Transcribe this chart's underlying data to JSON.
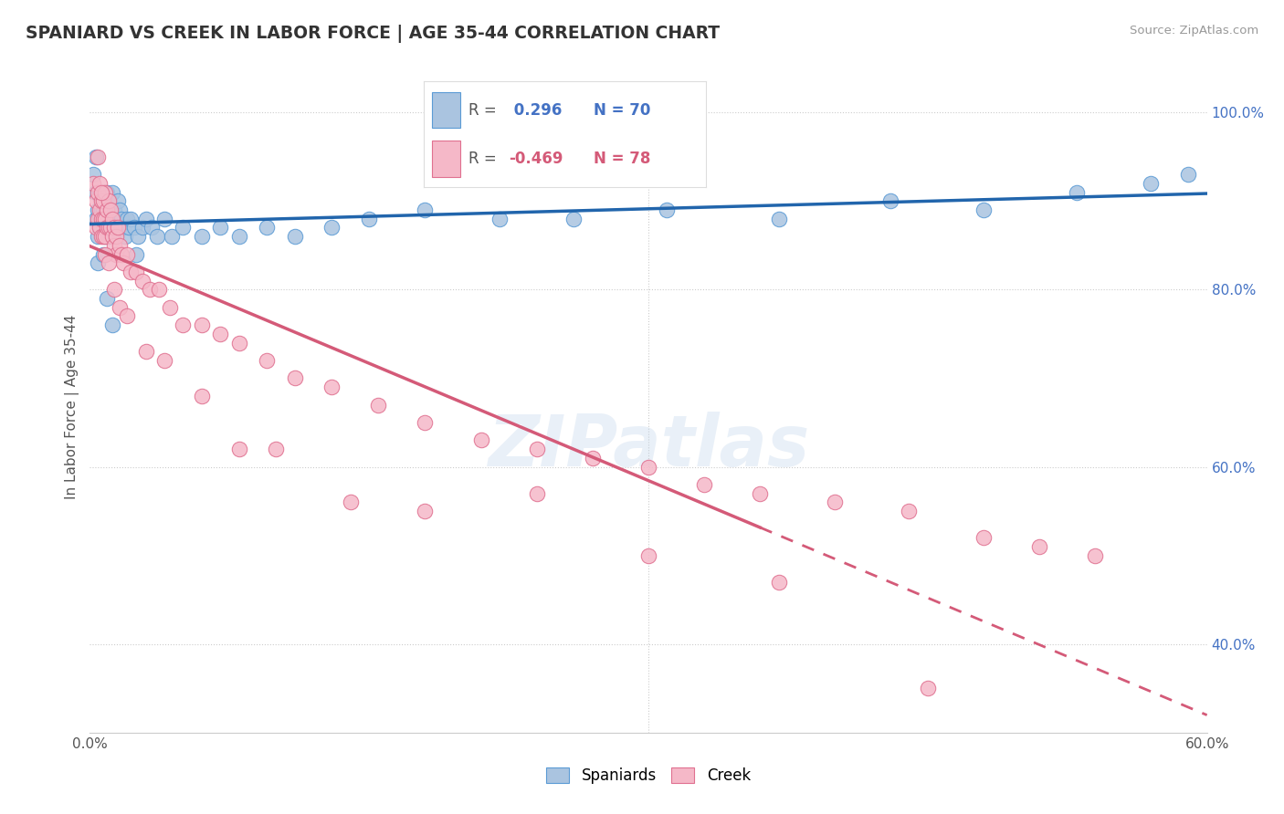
{
  "title": "SPANIARD VS CREEK IN LABOR FORCE | AGE 35-44 CORRELATION CHART",
  "source_text": "Source: ZipAtlas.com",
  "ylabel": "In Labor Force | Age 35-44",
  "xlim": [
    0.0,
    0.6
  ],
  "ylim": [
    0.3,
    1.035
  ],
  "xticks": [
    0.0,
    0.1,
    0.2,
    0.3,
    0.4,
    0.5,
    0.6
  ],
  "xticklabels": [
    "0.0%",
    "",
    "",
    "",
    "",
    "",
    "60.0%"
  ],
  "yticks": [
    0.4,
    0.6,
    0.8,
    1.0
  ],
  "yticklabels": [
    "40.0%",
    "60.0%",
    "80.0%",
    "100.0%"
  ],
  "r_spaniard": 0.296,
  "n_spaniard": 70,
  "r_creek": -0.469,
  "n_creek": 78,
  "blue_color": "#aac4e0",
  "blue_edge_color": "#5b9bd5",
  "blue_line_color": "#2165ac",
  "pink_color": "#f5b8c8",
  "pink_edge_color": "#e07090",
  "pink_line_color": "#d45a78",
  "legend_label_blue": "Spaniards",
  "legend_label_pink": "Creek",
  "watermark": "ZIPatlas",
  "spaniard_x": [
    0.002,
    0.003,
    0.003,
    0.004,
    0.004,
    0.005,
    0.005,
    0.005,
    0.006,
    0.006,
    0.006,
    0.007,
    0.007,
    0.007,
    0.008,
    0.008,
    0.008,
    0.009,
    0.009,
    0.01,
    0.01,
    0.01,
    0.011,
    0.011,
    0.012,
    0.012,
    0.013,
    0.013,
    0.014,
    0.015,
    0.015,
    0.016,
    0.017,
    0.018,
    0.019,
    0.02,
    0.021,
    0.022,
    0.024,
    0.026,
    0.028,
    0.03,
    0.033,
    0.036,
    0.04,
    0.044,
    0.05,
    0.06,
    0.07,
    0.08,
    0.095,
    0.11,
    0.13,
    0.15,
    0.18,
    0.22,
    0.26,
    0.31,
    0.37,
    0.43,
    0.48,
    0.53,
    0.57,
    0.59,
    0.003,
    0.004,
    0.007,
    0.009,
    0.012,
    0.025
  ],
  "spaniard_y": [
    0.93,
    0.91,
    0.88,
    0.89,
    0.86,
    0.91,
    0.88,
    0.87,
    0.9,
    0.89,
    0.87,
    0.91,
    0.89,
    0.87,
    0.9,
    0.88,
    0.86,
    0.91,
    0.88,
    0.9,
    0.88,
    0.86,
    0.89,
    0.87,
    0.91,
    0.88,
    0.89,
    0.87,
    0.88,
    0.9,
    0.87,
    0.89,
    0.88,
    0.87,
    0.86,
    0.88,
    0.87,
    0.88,
    0.87,
    0.86,
    0.87,
    0.88,
    0.87,
    0.86,
    0.88,
    0.86,
    0.87,
    0.86,
    0.87,
    0.86,
    0.87,
    0.86,
    0.87,
    0.88,
    0.89,
    0.88,
    0.88,
    0.89,
    0.88,
    0.9,
    0.89,
    0.91,
    0.92,
    0.93,
    0.95,
    0.83,
    0.84,
    0.79,
    0.76,
    0.84
  ],
  "creek_x": [
    0.002,
    0.003,
    0.003,
    0.004,
    0.004,
    0.005,
    0.005,
    0.005,
    0.006,
    0.006,
    0.006,
    0.007,
    0.007,
    0.007,
    0.008,
    0.008,
    0.008,
    0.009,
    0.009,
    0.01,
    0.01,
    0.011,
    0.011,
    0.012,
    0.012,
    0.013,
    0.013,
    0.014,
    0.014,
    0.015,
    0.016,
    0.017,
    0.018,
    0.02,
    0.022,
    0.025,
    0.028,
    0.032,
    0.037,
    0.043,
    0.05,
    0.06,
    0.07,
    0.08,
    0.095,
    0.11,
    0.13,
    0.155,
    0.18,
    0.21,
    0.24,
    0.27,
    0.3,
    0.33,
    0.36,
    0.4,
    0.44,
    0.48,
    0.51,
    0.54,
    0.004,
    0.006,
    0.008,
    0.01,
    0.013,
    0.016,
    0.02,
    0.03,
    0.04,
    0.06,
    0.08,
    0.1,
    0.14,
    0.18,
    0.24,
    0.3,
    0.37,
    0.45
  ],
  "creek_y": [
    0.92,
    0.9,
    0.87,
    0.91,
    0.88,
    0.92,
    0.89,
    0.87,
    0.9,
    0.88,
    0.86,
    0.9,
    0.88,
    0.86,
    0.91,
    0.88,
    0.86,
    0.89,
    0.87,
    0.9,
    0.87,
    0.89,
    0.87,
    0.88,
    0.86,
    0.87,
    0.85,
    0.86,
    0.84,
    0.87,
    0.85,
    0.84,
    0.83,
    0.84,
    0.82,
    0.82,
    0.81,
    0.8,
    0.8,
    0.78,
    0.76,
    0.76,
    0.75,
    0.74,
    0.72,
    0.7,
    0.69,
    0.67,
    0.65,
    0.63,
    0.62,
    0.61,
    0.6,
    0.58,
    0.57,
    0.56,
    0.55,
    0.52,
    0.51,
    0.5,
    0.95,
    0.91,
    0.84,
    0.83,
    0.8,
    0.78,
    0.77,
    0.73,
    0.72,
    0.68,
    0.62,
    0.62,
    0.56,
    0.55,
    0.57,
    0.5,
    0.47,
    0.35
  ]
}
